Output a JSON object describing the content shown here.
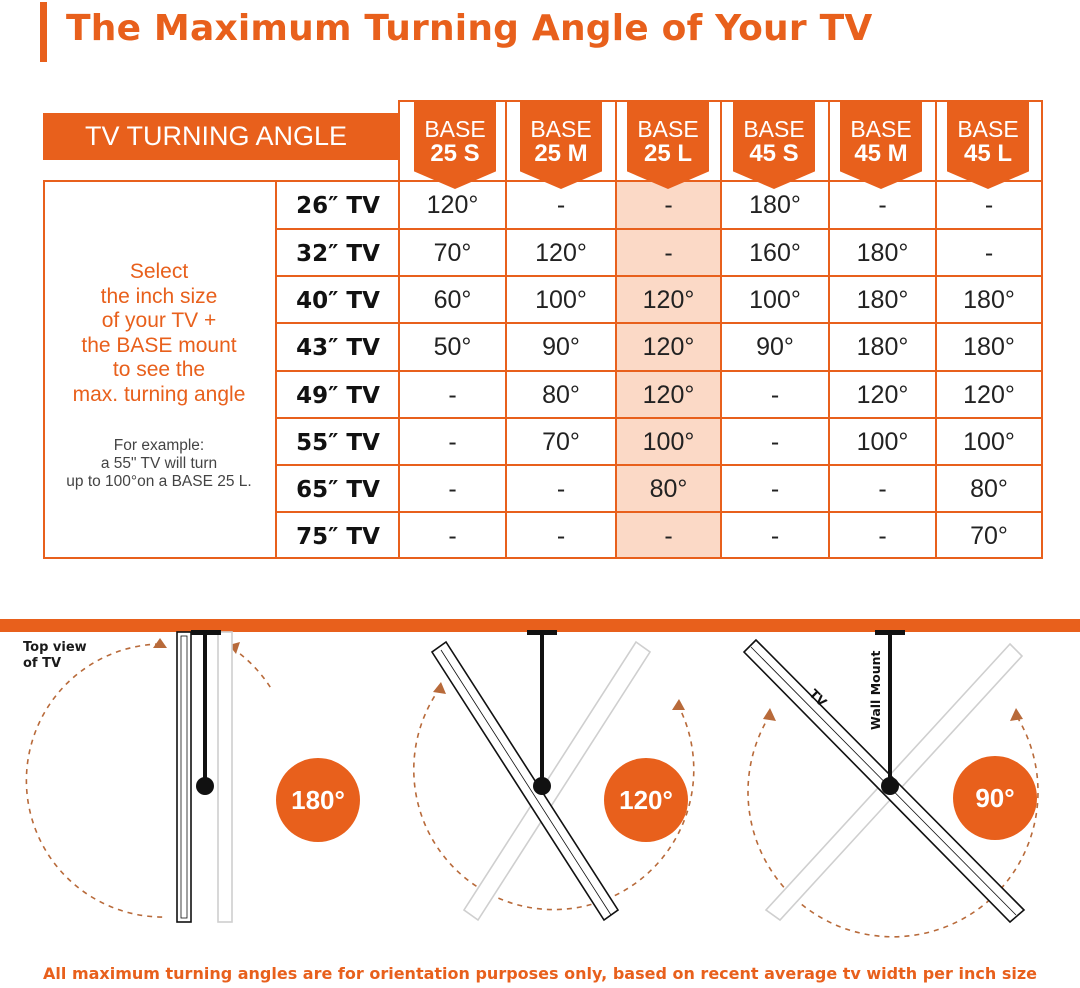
{
  "title": "The Maximum Turning Angle of Your TV",
  "table": {
    "header_label": "TV TURNING ANGLE",
    "bases": [
      {
        "line1": "BASE",
        "line2": "25 S"
      },
      {
        "line1": "BASE",
        "line2": "25 M"
      },
      {
        "line1": "BASE",
        "line2": "25 L"
      },
      {
        "line1": "BASE",
        "line2": "45 S"
      },
      {
        "line1": "BASE",
        "line2": "45 M"
      },
      {
        "line1": "BASE",
        "line2": "45 L"
      }
    ],
    "highlight_column": "25 L",
    "rows": [
      {
        "label": "26″ TV",
        "values": [
          "120°",
          "-",
          "-",
          "180°",
          "-",
          "-"
        ]
      },
      {
        "label": "32″ TV",
        "values": [
          "70°",
          "120°",
          "-",
          "160°",
          "180°",
          "-"
        ]
      },
      {
        "label": "40″ TV",
        "values": [
          "60°",
          "100°",
          "120°",
          "100°",
          "180°",
          "180°"
        ]
      },
      {
        "label": "43″ TV",
        "values": [
          "50°",
          "90°",
          "120°",
          "90°",
          "180°",
          "180°"
        ]
      },
      {
        "label": "49″ TV",
        "values": [
          "-",
          "80°",
          "120°",
          "-",
          "120°",
          "120°"
        ]
      },
      {
        "label": "55″ TV",
        "values": [
          "-",
          "70°",
          "100°",
          "-",
          "100°",
          "100°"
        ]
      },
      {
        "label": "65″ TV",
        "values": [
          "-",
          "-",
          "80°",
          "-",
          "-",
          "80°"
        ]
      },
      {
        "label": "75″ TV",
        "values": [
          "-",
          "-",
          "-",
          "-",
          "-",
          "70°"
        ]
      }
    ],
    "instructions": [
      "Select",
      "the inch size",
      "of your TV +",
      "the BASE mount",
      "to see the",
      "max. turning angle"
    ],
    "example": [
      "For example:",
      "a 55\" TV will turn",
      "up to 100°on a BASE 25 L."
    ]
  },
  "diagram": {
    "top_view_label": [
      "Top view",
      "of TV"
    ],
    "tv_label": "TV",
    "wall_mount_label": "Wall Mount",
    "angles": [
      "180°",
      "120°",
      "90°"
    ]
  },
  "footer": "All maximum turning angles are for orientation purposes only, based on recent average tv width per inch size",
  "colors": {
    "accent": "#e8601c",
    "highlight": "#fbd9c6"
  }
}
